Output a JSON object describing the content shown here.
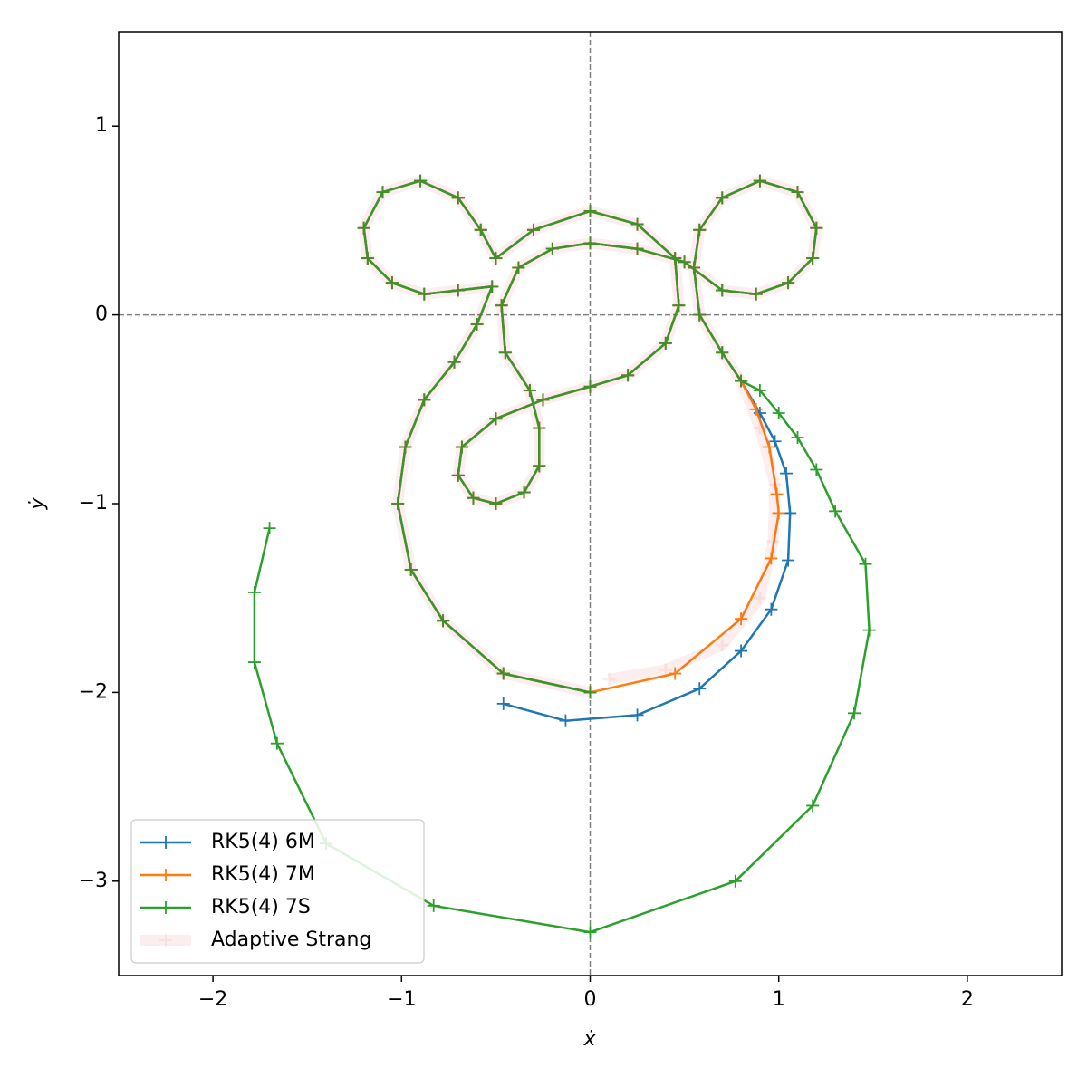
{
  "chart_data": {
    "type": "line",
    "xlabel": "ẋ",
    "ylabel": "ẏ",
    "xlim": [
      -2.5,
      2.5
    ],
    "ylim": [
      -3.5,
      1.5
    ],
    "xticks": [
      {
        "value": -2,
        "label": "−2"
      },
      {
        "value": -1,
        "label": "−1"
      },
      0,
      1,
      2
    ],
    "yticks": [
      {
        "value": -3,
        "label": "−3"
      },
      {
        "value": -2,
        "label": "−2"
      },
      {
        "value": -1,
        "label": "−1"
      },
      0,
      1
    ],
    "axhline": 0,
    "axvline": 0,
    "legend": "lower left",
    "series": [
      {
        "name": "RK5(4) 6M",
        "color": "#1f77b4",
        "x": [
          0,
          -0.46,
          -0.78,
          -0.95,
          -1.02,
          -0.98,
          -0.88,
          -0.72,
          -0.6,
          -0.52,
          -0.7,
          -0.88,
          -1.05,
          -1.18,
          -1.2,
          -1.1,
          -0.9,
          -0.7,
          -0.58,
          -0.5,
          -0.3,
          0,
          0.25,
          0.45,
          0.47,
          0.4,
          0.2,
          0,
          -0.25,
          -0.5,
          -0.68,
          -0.7,
          -0.62,
          -0.5,
          -0.35,
          -0.27,
          -0.27,
          -0.32,
          -0.45,
          -0.47,
          -0.38,
          -0.2,
          0,
          0.25,
          0.5,
          0.7,
          0.88,
          1.05,
          1.18,
          1.2,
          1.1,
          0.9,
          0.7,
          0.58,
          0.55,
          0.58,
          0.7,
          0.8,
          0.9,
          0.98,
          1.04,
          1.06,
          1.05,
          0.96,
          0.8,
          0.58,
          0.25,
          -0.13,
          -0.46
        ],
        "values": [
          -2,
          -1.9,
          -1.62,
          -1.35,
          -1.0,
          -0.7,
          -0.45,
          -0.25,
          -0.05,
          0.15,
          0.13,
          0.11,
          0.17,
          0.3,
          0.46,
          0.65,
          0.71,
          0.62,
          0.45,
          0.3,
          0.45,
          0.55,
          0.48,
          0.3,
          0.05,
          -0.15,
          -0.32,
          -0.38,
          -0.45,
          -0.55,
          -0.7,
          -0.85,
          -0.97,
          -1.0,
          -0.94,
          -0.8,
          -0.6,
          -0.4,
          -0.2,
          0.05,
          0.25,
          0.35,
          0.38,
          0.35,
          0.28,
          0.13,
          0.11,
          0.17,
          0.3,
          0.46,
          0.65,
          0.71,
          0.62,
          0.45,
          0.25,
          0.0,
          -0.2,
          -0.35,
          -0.52,
          -0.67,
          -0.84,
          -1.05,
          -1.3,
          -1.56,
          -1.78,
          -1.98,
          -2.12,
          -2.15,
          -2.06
        ]
      },
      {
        "name": "RK5(4) 7M",
        "color": "#ff7f0e",
        "x": [
          0,
          -0.46,
          -0.78,
          -0.95,
          -1.02,
          -0.98,
          -0.88,
          -0.72,
          -0.6,
          -0.52,
          -0.7,
          -0.88,
          -1.05,
          -1.18,
          -1.2,
          -1.1,
          -0.9,
          -0.7,
          -0.58,
          -0.5,
          -0.3,
          0,
          0.25,
          0.45,
          0.47,
          0.4,
          0.2,
          0,
          -0.25,
          -0.5,
          -0.68,
          -0.7,
          -0.62,
          -0.5,
          -0.35,
          -0.27,
          -0.27,
          -0.32,
          -0.45,
          -0.47,
          -0.38,
          -0.2,
          0,
          0.25,
          0.5,
          0.7,
          0.88,
          1.05,
          1.18,
          1.2,
          1.1,
          0.9,
          0.7,
          0.58,
          0.55,
          0.58,
          0.7,
          0.8,
          0.88,
          0.95,
          0.99,
          1.0,
          0.96,
          0.8,
          0.45,
          0
        ],
        "values": [
          -2,
          -1.9,
          -1.62,
          -1.35,
          -1.0,
          -0.7,
          -0.45,
          -0.25,
          -0.05,
          0.15,
          0.13,
          0.11,
          0.17,
          0.3,
          0.46,
          0.65,
          0.71,
          0.62,
          0.45,
          0.3,
          0.45,
          0.55,
          0.48,
          0.3,
          0.05,
          -0.15,
          -0.32,
          -0.38,
          -0.45,
          -0.55,
          -0.7,
          -0.85,
          -0.97,
          -1.0,
          -0.94,
          -0.8,
          -0.6,
          -0.4,
          -0.2,
          0.05,
          0.25,
          0.35,
          0.38,
          0.35,
          0.28,
          0.13,
          0.11,
          0.17,
          0.3,
          0.46,
          0.65,
          0.71,
          0.62,
          0.45,
          0.25,
          0.0,
          -0.2,
          -0.35,
          -0.5,
          -0.7,
          -0.95,
          -1.05,
          -1.29,
          -1.61,
          -1.9,
          -2.0
        ]
      },
      {
        "name": "RK5(4) 7S",
        "color": "#2ca02c",
        "x": [
          0,
          -0.46,
          -0.78,
          -0.95,
          -1.02,
          -0.98,
          -0.88,
          -0.72,
          -0.6,
          -0.52,
          -0.7,
          -0.88,
          -1.05,
          -1.18,
          -1.2,
          -1.1,
          -0.9,
          -0.7,
          -0.58,
          -0.5,
          -0.3,
          0,
          0.25,
          0.45,
          0.47,
          0.4,
          0.2,
          0,
          -0.25,
          -0.5,
          -0.68,
          -0.7,
          -0.62,
          -0.5,
          -0.35,
          -0.27,
          -0.27,
          -0.32,
          -0.45,
          -0.47,
          -0.38,
          -0.2,
          0,
          0.25,
          0.5,
          0.7,
          0.88,
          1.05,
          1.18,
          1.2,
          1.1,
          0.9,
          0.7,
          0.58,
          0.55,
          0.58,
          0.7,
          0.8,
          0.9,
          1.0,
          1.1,
          1.2,
          1.3,
          1.46,
          1.48,
          1.4,
          1.18,
          0.77,
          0,
          -0.83,
          -1.4,
          -1.66,
          -1.78,
          -1.78,
          -1.7
        ],
        "values": [
          -2,
          -1.9,
          -1.62,
          -1.35,
          -1.0,
          -0.7,
          -0.45,
          -0.25,
          -0.05,
          0.15,
          0.13,
          0.11,
          0.17,
          0.3,
          0.46,
          0.65,
          0.71,
          0.62,
          0.45,
          0.3,
          0.45,
          0.55,
          0.48,
          0.3,
          0.05,
          -0.15,
          -0.32,
          -0.38,
          -0.45,
          -0.55,
          -0.7,
          -0.85,
          -0.97,
          -1.0,
          -0.94,
          -0.8,
          -0.6,
          -0.4,
          -0.2,
          0.05,
          0.25,
          0.35,
          0.38,
          0.35,
          0.28,
          0.13,
          0.11,
          0.17,
          0.3,
          0.46,
          0.65,
          0.71,
          0.62,
          0.45,
          0.25,
          0.0,
          -0.2,
          -0.35,
          -0.4,
          -0.52,
          -0.65,
          -0.82,
          -1.04,
          -1.32,
          -1.67,
          -2.11,
          -2.6,
          -3.0,
          -3.27,
          -3.13,
          -2.8,
          -2.27,
          -1.84,
          -1.47,
          -1.13
        ]
      },
      {
        "name": "Adaptive Strang",
        "color": "#d62728",
        "alpha": 0.08,
        "x": [
          0,
          -0.46,
          -0.78,
          -0.95,
          -1.02,
          -0.98,
          -0.88,
          -0.72,
          -0.6,
          -0.52,
          -0.7,
          -0.88,
          -1.05,
          -1.18,
          -1.2,
          -1.1,
          -0.9,
          -0.7,
          -0.58,
          -0.5,
          -0.3,
          0,
          0.25,
          0.45,
          0.47,
          0.4,
          0.2,
          0,
          -0.25,
          -0.5,
          -0.68,
          -0.7,
          -0.62,
          -0.5,
          -0.35,
          -0.27,
          -0.27,
          -0.32,
          -0.45,
          -0.47,
          -0.38,
          -0.2,
          0,
          0.25,
          0.5,
          0.7,
          0.88,
          1.05,
          1.18,
          1.2,
          1.1,
          0.9,
          0.7,
          0.58,
          0.55,
          0.58,
          0.7,
          0.8,
          0.9,
          0.98,
          0.97,
          0.9,
          0.7,
          0.4,
          0.1
        ],
        "values": [
          -2,
          -1.9,
          -1.62,
          -1.35,
          -1.0,
          -0.7,
          -0.45,
          -0.25,
          -0.05,
          0.15,
          0.13,
          0.11,
          0.17,
          0.3,
          0.46,
          0.65,
          0.71,
          0.62,
          0.45,
          0.3,
          0.45,
          0.55,
          0.48,
          0.3,
          0.05,
          -0.15,
          -0.32,
          -0.38,
          -0.45,
          -0.55,
          -0.7,
          -0.85,
          -0.97,
          -1.0,
          -0.94,
          -0.8,
          -0.6,
          -0.4,
          -0.2,
          0.05,
          0.25,
          0.35,
          0.38,
          0.35,
          0.28,
          0.13,
          0.11,
          0.17,
          0.3,
          0.46,
          0.65,
          0.71,
          0.62,
          0.45,
          0.25,
          0.0,
          -0.2,
          -0.35,
          -0.6,
          -0.9,
          -1.2,
          -1.5,
          -1.75,
          -1.88,
          -1.93
        ]
      }
    ]
  }
}
